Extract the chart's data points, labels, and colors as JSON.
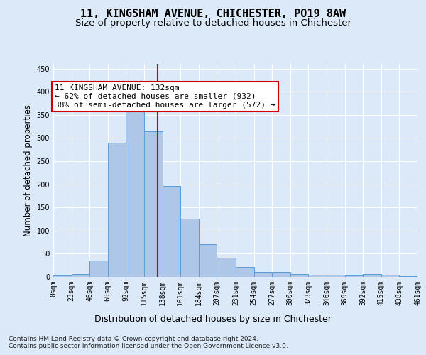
{
  "title": "11, KINGSHAM AVENUE, CHICHESTER, PO19 8AW",
  "subtitle": "Size of property relative to detached houses in Chichester",
  "xlabel": "Distribution of detached houses by size in Chichester",
  "ylabel": "Number of detached properties",
  "bar_edges": [
    0,
    23,
    46,
    69,
    92,
    115,
    138,
    161,
    184,
    207,
    231,
    254,
    277,
    300,
    323,
    346,
    369,
    392,
    415,
    438,
    461
  ],
  "bar_heights": [
    3,
    6,
    35,
    290,
    360,
    315,
    196,
    126,
    70,
    41,
    21,
    11,
    10,
    6,
    4,
    4,
    3,
    6,
    4,
    1
  ],
  "bar_color": "#aec6e8",
  "bar_edgecolor": "#5b9bd5",
  "property_value": 132,
  "vline_color": "#cc0000",
  "annotation_line1": "11 KINGSHAM AVENUE: 132sqm",
  "annotation_line2": "← 62% of detached houses are smaller (932)",
  "annotation_line3": "38% of semi-detached houses are larger (572) →",
  "annotation_box_edgecolor": "#cc0000",
  "annotation_box_facecolor": "#ffffff",
  "ylim": [
    0,
    460
  ],
  "yticks": [
    0,
    50,
    100,
    150,
    200,
    250,
    300,
    350,
    400,
    450
  ],
  "tick_labels": [
    "0sqm",
    "23sqm",
    "46sqm",
    "69sqm",
    "92sqm",
    "115sqm",
    "138sqm",
    "161sqm",
    "184sqm",
    "207sqm",
    "231sqm",
    "254sqm",
    "277sqm",
    "300sqm",
    "323sqm",
    "346sqm",
    "369sqm",
    "392sqm",
    "415sqm",
    "438sqm",
    "461sqm"
  ],
  "footer_line1": "Contains HM Land Registry data © Crown copyright and database right 2024.",
  "footer_line2": "Contains public sector information licensed under the Open Government Licence v3.0.",
  "background_color": "#dce9f8",
  "plot_background": "#dce9f8",
  "grid_color": "#ffffff",
  "title_fontsize": 11,
  "subtitle_fontsize": 9.5,
  "xlabel_fontsize": 9,
  "ylabel_fontsize": 8.5,
  "tick_fontsize": 7,
  "annotation_fontsize": 8,
  "footer_fontsize": 6.5
}
